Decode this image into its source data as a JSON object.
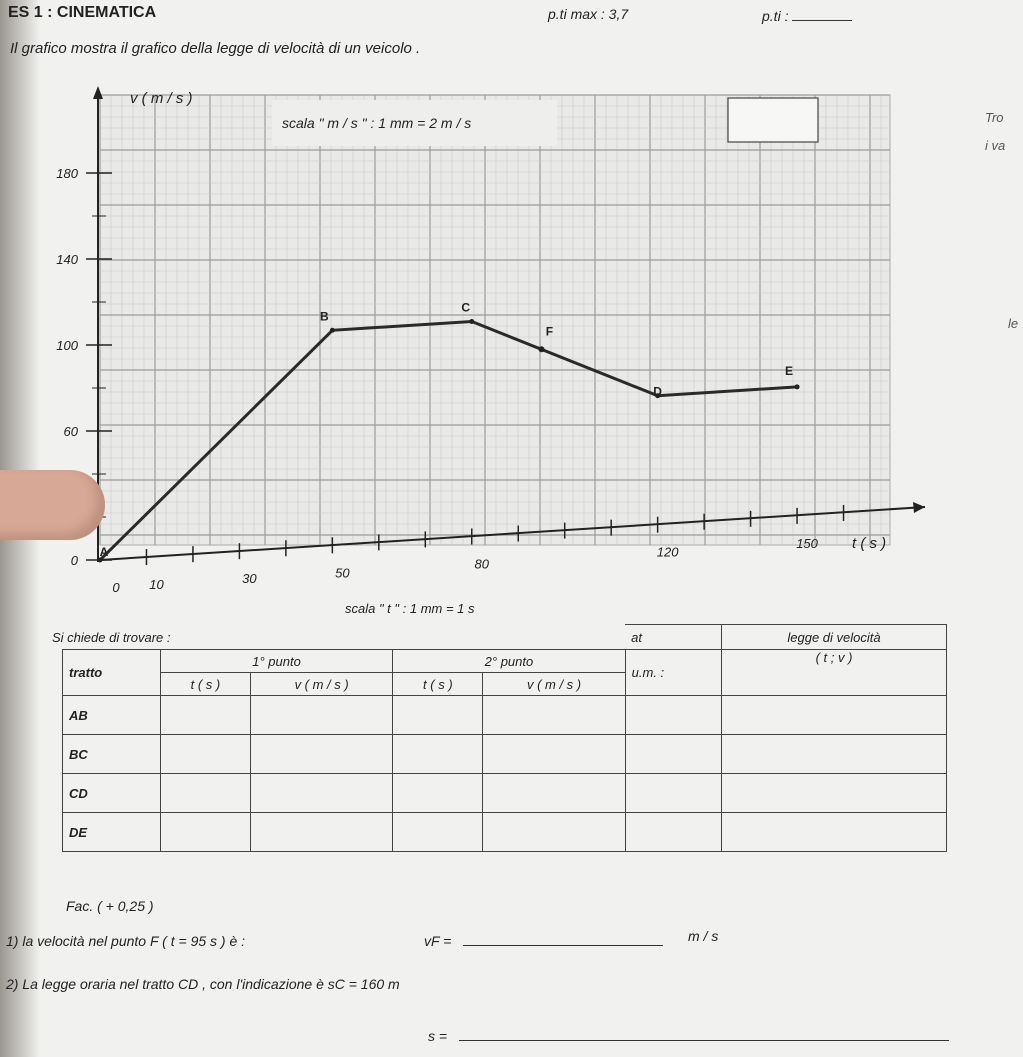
{
  "header": {
    "title": "ES 1 : CINEMATICA",
    "pti_max": "p.ti max : 3,7",
    "pti": "p.ti :"
  },
  "intro": "Il grafico mostra il grafico della legge di velocità di un veicolo .",
  "graph": {
    "y_axis_label": "v ( m / s )",
    "x_axis_label": "t ( s )",
    "scale_y": "scala \" m / s \" : 1 mm = 2 m / s",
    "scale_x": "scala \" t \" : 1 mm = 1 s",
    "y_ticks": [
      "180",
      "140",
      "100",
      "60",
      "0"
    ],
    "x_ticks": [
      "0",
      "10",
      "30",
      "50",
      "80",
      "120",
      "150"
    ],
    "points": [
      "A",
      "B",
      "C",
      "F",
      "D",
      "E"
    ]
  },
  "chart_data": {
    "type": "line",
    "xlabel": "t ( s )",
    "ylabel": "v ( m / s )",
    "x": [
      0,
      50,
      80,
      120,
      150
    ],
    "y": [
      0,
      100,
      100,
      60,
      60
    ],
    "point_labels": [
      "A",
      "B",
      "C",
      "D",
      "E"
    ],
    "xlim": [
      0,
      170
    ],
    "ylim": [
      0,
      200
    ],
    "grid": true
  },
  "table": {
    "caption": "Si chiede di trovare :",
    "col_tratto": "tratto",
    "col_p1": "1° punto",
    "col_p2": "2° punto",
    "col_at": "at",
    "col_um": "u.m. :",
    "col_legge": "legge di velocità",
    "col_legge_sub": "( t ; v )",
    "sub_t": "t ( s )",
    "sub_v": "v ( m / s )",
    "rows": [
      "AB",
      "BC",
      "CD",
      "DE"
    ]
  },
  "questions": {
    "fac": "Fac. ( + 0,25 )",
    "q1": "1) la velocità nel punto  F  ( t = 95 s )  è :",
    "q1_var": "vF =",
    "q1_unit": "m / s",
    "q2": "2) La legge oraria nel tratto  CD , con  l'indicazione è   sC =  160 m",
    "q2_var": "s ="
  },
  "side_fragments": [
    "Tro",
    "i va",
    "le"
  ]
}
